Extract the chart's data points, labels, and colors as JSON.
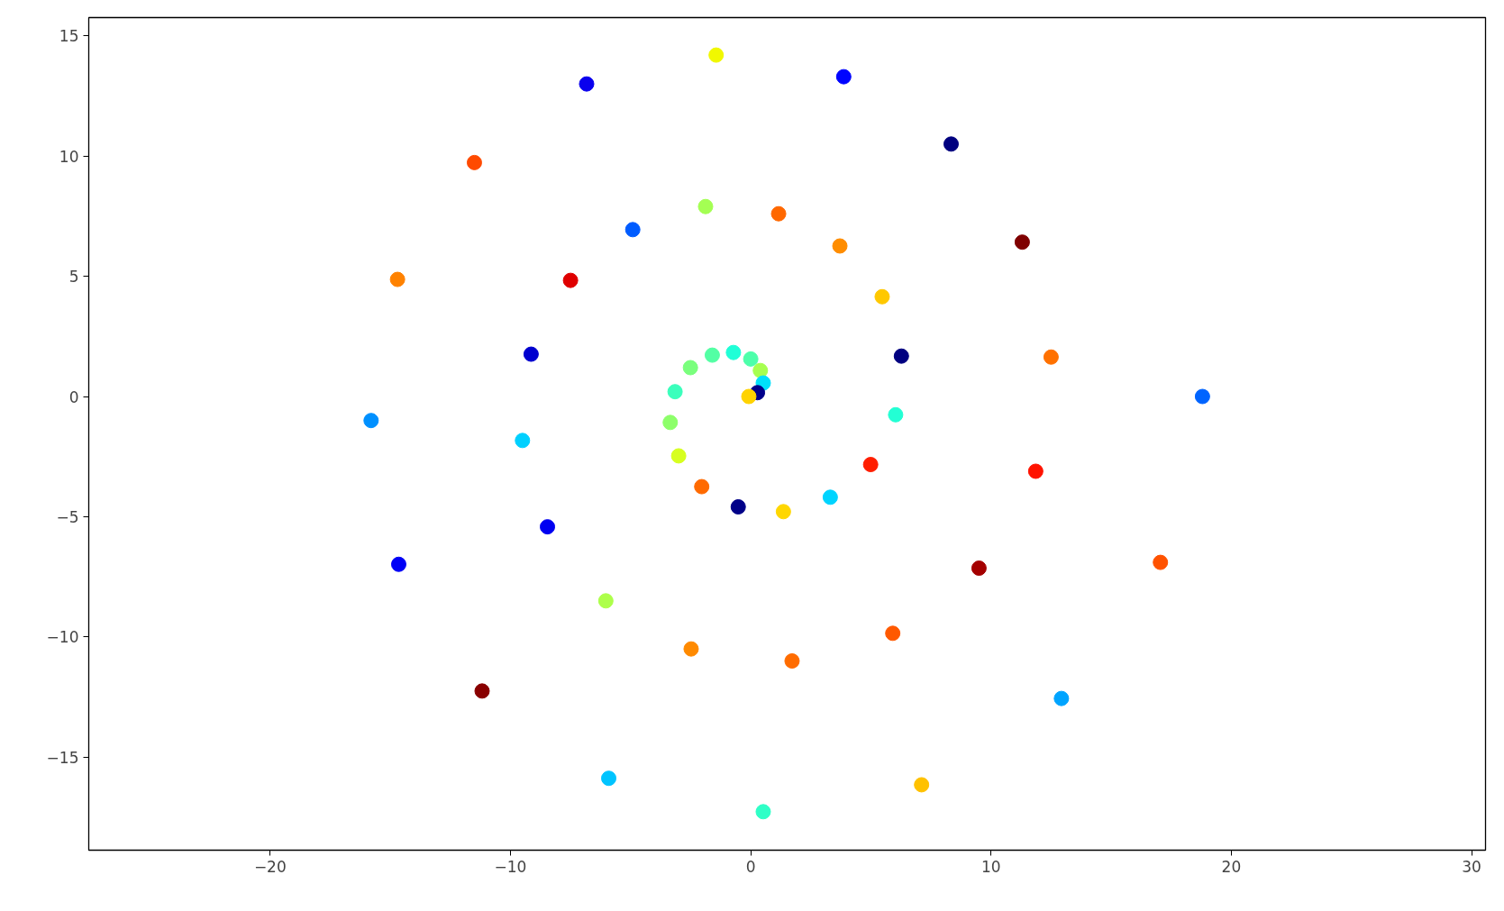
{
  "chart_data": {
    "type": "scatter",
    "marker": "circle",
    "grid": false,
    "xlim": [
      -27.55,
      30.58
    ],
    "ylim": [
      -18.87,
      15.76
    ],
    "xticks": [
      {
        "value": -20,
        "label": "−20"
      },
      {
        "value": -10,
        "label": "−10"
      },
      0,
      10,
      20,
      30
    ],
    "yticks": [
      {
        "value": -15,
        "label": "−15"
      },
      {
        "value": -10,
        "label": "−10"
      },
      {
        "value": -5,
        "label": "−5"
      },
      0,
      5,
      10,
      15
    ],
    "x": [
      -1.44,
      -6.83,
      3.87,
      8.34,
      -11.5,
      -1.88,
      1.16,
      -4.91,
      11.3,
      3.71,
      -14.7,
      -7.5,
      5.47,
      -9.14,
      6.27,
      12.5,
      -1.6,
      -0.72,
      0,
      -2.51,
      0.4,
      0.52,
      0.28,
      -0.08,
      -3.15,
      18.8,
      -15.8,
      6.03,
      -3.35,
      -9.5,
      -3.0,
      4.99,
      11.86,
      -2.04,
      3.31,
      -0.52,
      1.36,
      -8.46,
      -14.65,
      17.05,
      9.5,
      -6.03,
      5.91,
      -2.48,
      1.72,
      -11.18,
      12.93,
      -5.91,
      7.11,
      0.52
    ],
    "values": [
      14.2,
      13.0,
      13.3,
      10.5,
      9.73,
      7.9,
      7.6,
      6.94,
      6.42,
      6.26,
      4.87,
      4.83,
      4.15,
      1.76,
      1.68,
      1.64,
      1.72,
      1.83,
      1.56,
      1.2,
      1.08,
      0.56,
      0.16,
      0,
      0.2,
      0,
      -1.0,
      -0.76,
      -1.08,
      -1.83,
      -2.47,
      -2.83,
      -3.11,
      -3.75,
      -4.19,
      -4.59,
      -4.79,
      -5.42,
      -6.98,
      -6.9,
      -7.14,
      -8.5,
      -9.85,
      -10.5,
      -11.0,
      -12.25,
      -12.56,
      -15.88,
      -16.15,
      -17.27
    ],
    "colors": [
      "#f1f800",
      "#0a00ee",
      "#0004ff",
      "#00007f",
      "#ff4a00",
      "#a4ff53",
      "#ff6800",
      "#005cff",
      "#7f0000",
      "#ff8d00",
      "#ff8200",
      "#df0000",
      "#ffc800",
      "#0000cf",
      "#000080",
      "#ff7100",
      "#53ffa4",
      "#1fffd7",
      "#4dffaa",
      "#7aff7d",
      "#a7ff50",
      "#00e0fb",
      "#00008b",
      "#ffd300",
      "#3affbc",
      "#0064ff",
      "#0090ff",
      "#23ffd4",
      "#8dff6a",
      "#00d0ff",
      "#d7ff1f",
      "#ff1e00",
      "#ff1300",
      "#ff6a00",
      "#00d4ff",
      "#000088",
      "#ffd700",
      "#0000f1",
      "#0000f6",
      "#ff5200",
      "#a40000",
      "#adff4a",
      "#ff5900",
      "#ff8a00",
      "#ff6c00",
      "#890000",
      "#00a4ff",
      "#00c4ff",
      "#ffc100",
      "#2fffc7"
    ]
  }
}
